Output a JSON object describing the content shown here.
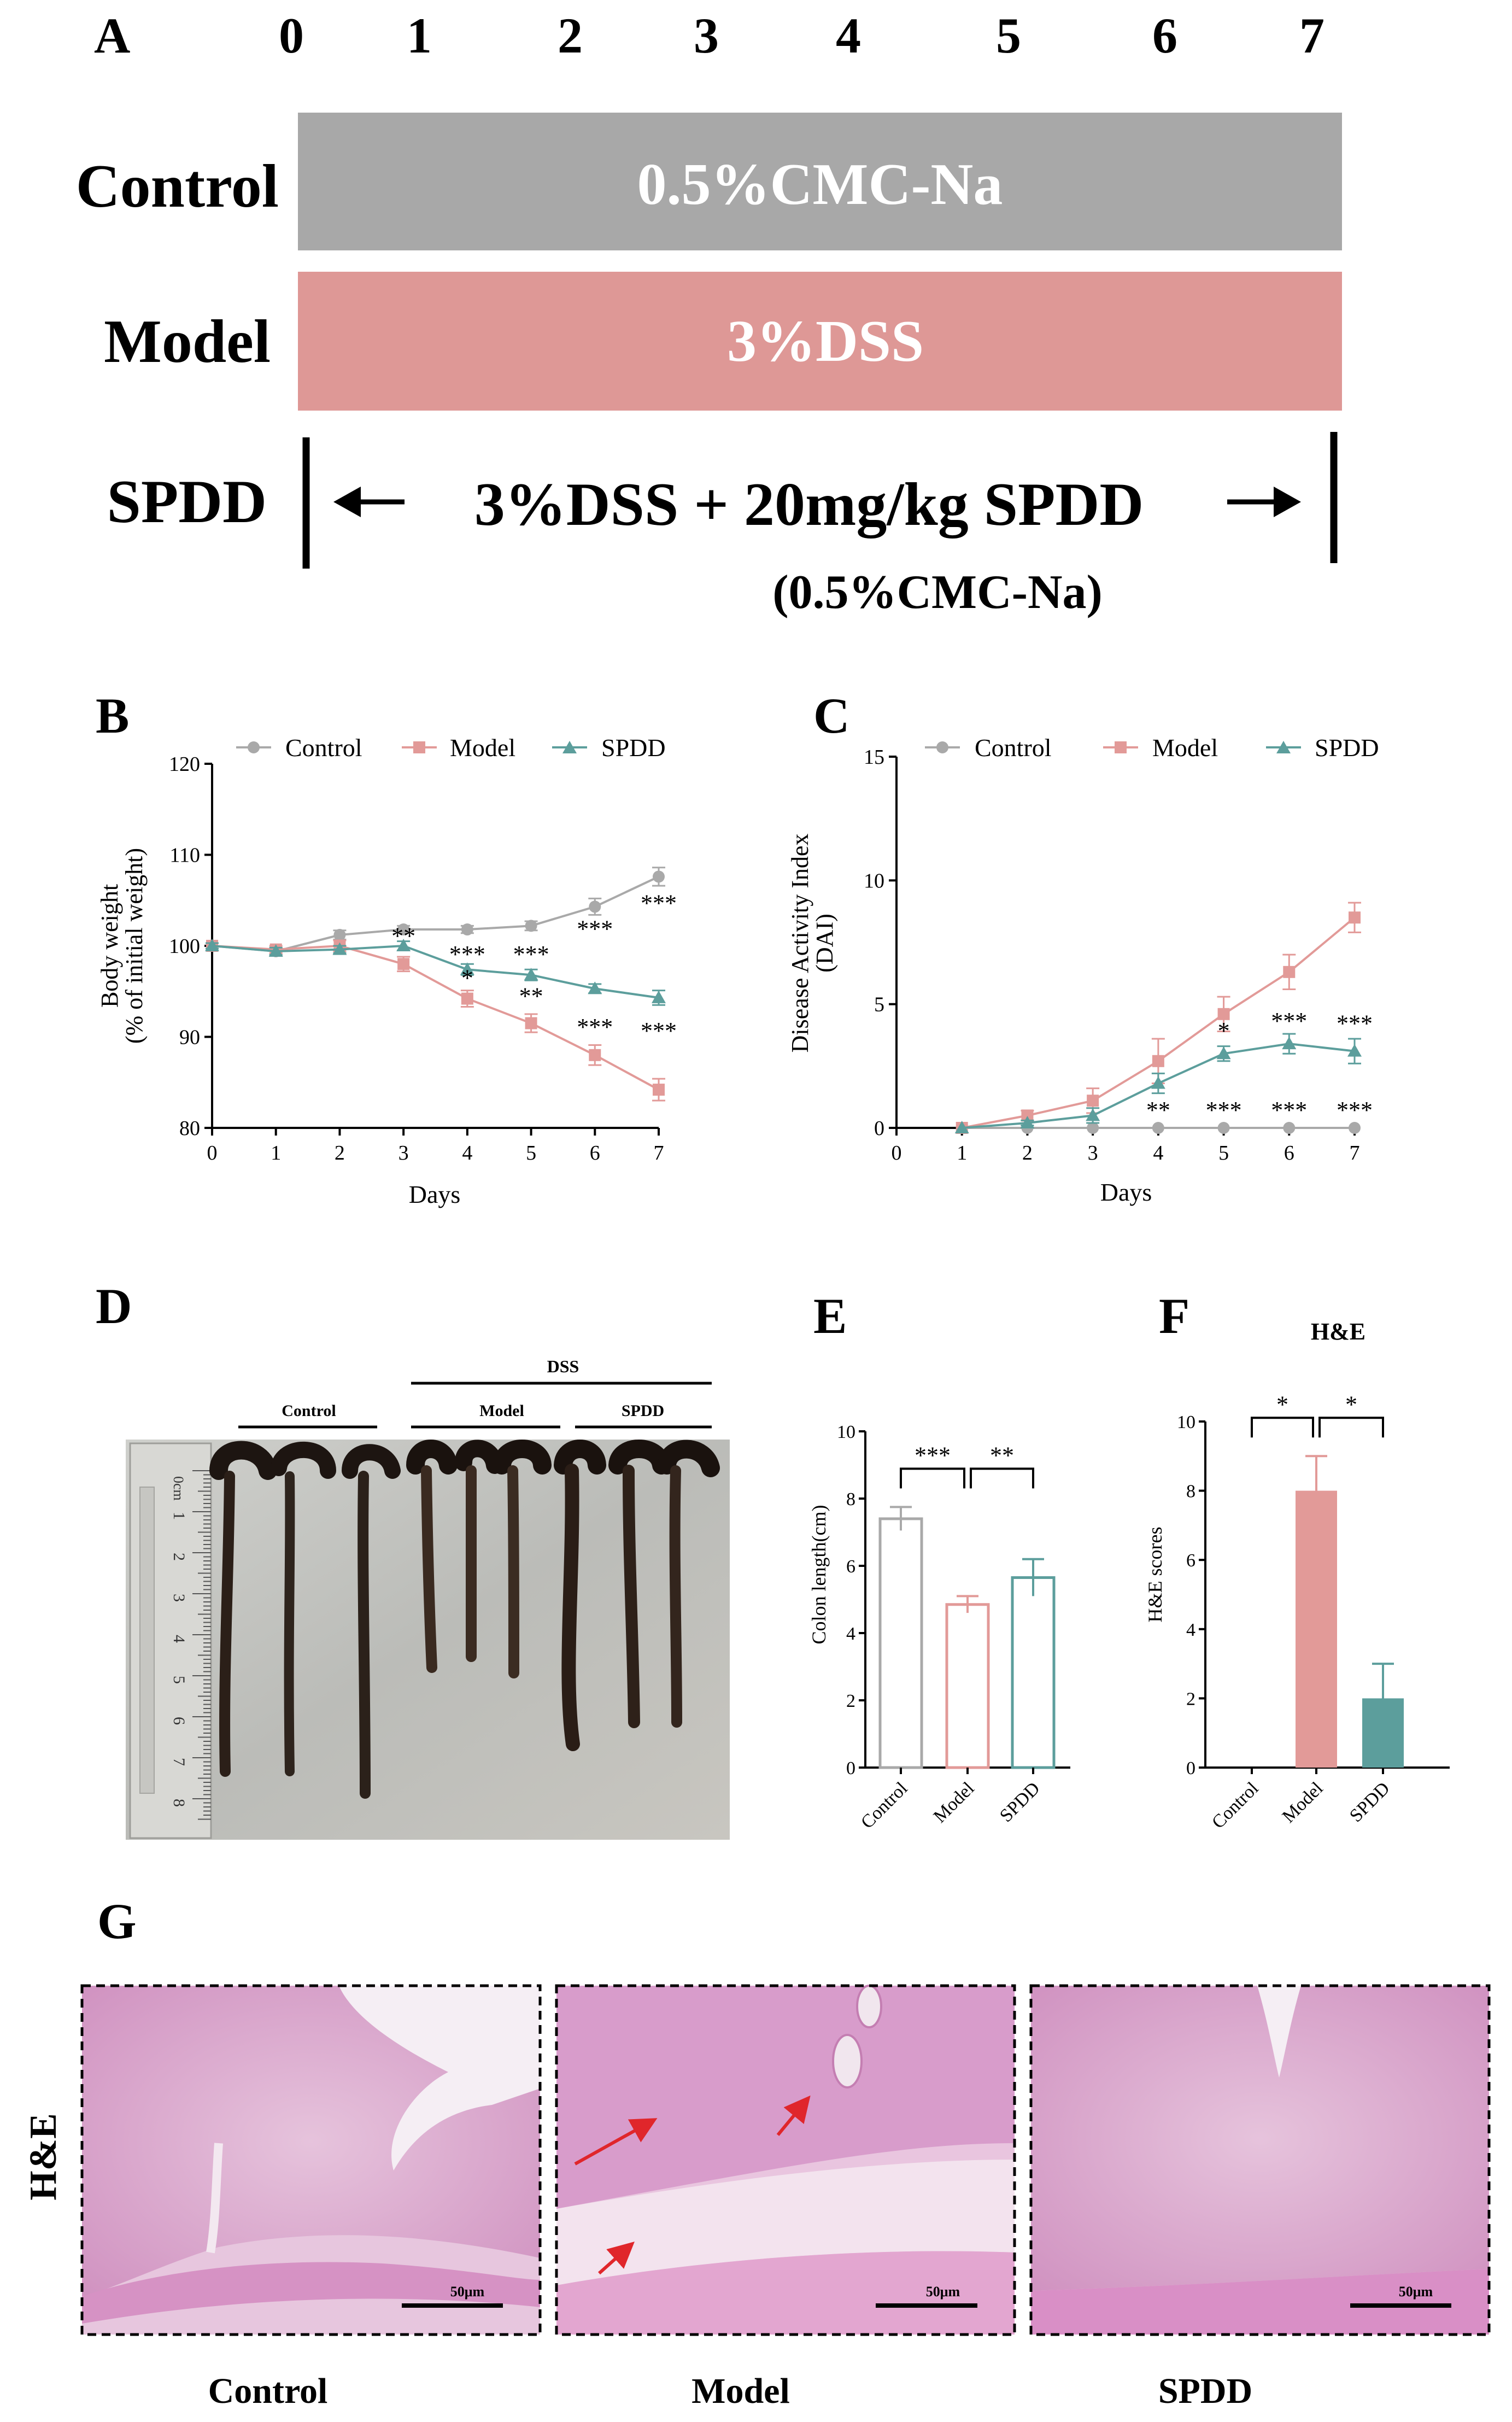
{
  "panel_letters": {
    "A": "A",
    "B": "B",
    "C": "C",
    "D": "D",
    "E": "E",
    "F": "F",
    "G": "G"
  },
  "colors": {
    "control": "#a9a9a9",
    "model": "#e29a98",
    "spdd": "#5c9e9c",
    "control_bar": "#a8a8a8",
    "model_bar": "#de9896",
    "ink": "#000000",
    "arrow_red": "#e0262b"
  },
  "panel_a": {
    "days": [
      "0",
      "1",
      "2",
      "3",
      "4",
      "5",
      "6",
      "7"
    ],
    "rows": [
      {
        "group": "Control",
        "treatment": "0.5%CMC-Na"
      },
      {
        "group": "Model",
        "treatment": "3%DSS"
      },
      {
        "group": "SPDD",
        "treatment": "3%DSS + 20mg/kg SPDD",
        "vehicle": "(0.5%CMC-Na)"
      }
    ]
  },
  "chart_data": [
    {
      "id": "B",
      "type": "line",
      "xlabel": "Days",
      "ylabel_lines": [
        "Body weight",
        "(% of initial weight)"
      ],
      "x": [
        0,
        1,
        2,
        3,
        4,
        5,
        6,
        7
      ],
      "xlim": [
        0,
        7
      ],
      "ylim": [
        80,
        120
      ],
      "x_ticks": [
        0,
        1,
        2,
        3,
        4,
        5,
        6,
        7
      ],
      "y_ticks": [
        80,
        90,
        100,
        110,
        120
      ],
      "legend_position": "top",
      "series": [
        {
          "name": "Control",
          "marker": "circle",
          "values": [
            100,
            99.4,
            101.2,
            101.8,
            101.8,
            102.2,
            104.3,
            107.6
          ],
          "errors": [
            0.3,
            0.4,
            0.5,
            0.4,
            0.4,
            0.5,
            0.9,
            1.0
          ]
        },
        {
          "name": "Model",
          "marker": "square",
          "values": [
            100,
            99.6,
            100,
            98,
            94.2,
            91.5,
            88,
            84.2
          ],
          "errors": [
            0.3,
            0.4,
            0.6,
            0.8,
            0.9,
            1.0,
            1.1,
            1.2
          ]
        },
        {
          "name": "SPDD",
          "marker": "triangle",
          "values": [
            100,
            99.4,
            99.6,
            100,
            97.4,
            96.8,
            95.3,
            94.3
          ],
          "errors": [
            0.3,
            0.4,
            0.4,
            0.5,
            0.6,
            0.6,
            0.5,
            0.8
          ]
        }
      ],
      "annotations": [
        {
          "x": 3,
          "y": 100.2,
          "text": "**"
        },
        {
          "x": 4,
          "y": 98.2,
          "text": "***"
        },
        {
          "x": 4,
          "y": 95.6,
          "text": "*"
        },
        {
          "x": 5,
          "y": 98.2,
          "text": "***"
        },
        {
          "x": 5,
          "y": 93.6,
          "text": "**"
        },
        {
          "x": 6,
          "y": 101,
          "text": "***"
        },
        {
          "x": 6,
          "y": 90.2,
          "text": "***"
        },
        {
          "x": 7,
          "y": 103.8,
          "text": "***"
        },
        {
          "x": 7,
          "y": 89.8,
          "text": "***"
        }
      ]
    },
    {
      "id": "C",
      "type": "line",
      "xlabel": "Days",
      "ylabel_lines": [
        "Disease Activity Index",
        "(DAI)"
      ],
      "x": [
        1,
        2,
        3,
        4,
        5,
        6,
        7
      ],
      "xlim": [
        0,
        7
      ],
      "ylim": [
        0,
        15
      ],
      "x_ticks": [
        0,
        1,
        2,
        3,
        4,
        5,
        6,
        7
      ],
      "y_ticks": [
        0,
        5,
        10,
        15
      ],
      "legend_position": "top",
      "series": [
        {
          "name": "Control",
          "marker": "circle",
          "values": [
            0,
            0,
            0,
            0,
            0,
            0,
            0
          ],
          "errors": [
            0,
            0,
            0,
            0,
            0,
            0,
            0
          ]
        },
        {
          "name": "Model",
          "marker": "square",
          "values": [
            0,
            0.5,
            1.1,
            2.7,
            4.6,
            6.3,
            8.5
          ],
          "errors": [
            0,
            0.2,
            0.5,
            0.9,
            0.7,
            0.7,
            0.6
          ]
        },
        {
          "name": "SPDD",
          "marker": "triangle",
          "values": [
            0,
            0.2,
            0.5,
            1.8,
            3,
            3.4,
            3.1
          ],
          "errors": [
            0,
            0.1,
            0.3,
            0.4,
            0.3,
            0.4,
            0.5
          ]
        }
      ],
      "annotations": [
        {
          "x": 4,
          "y": 0.4,
          "text": "**"
        },
        {
          "x": 5,
          "y": 0.4,
          "text": "***"
        },
        {
          "x": 6,
          "y": 0.4,
          "text": "***"
        },
        {
          "x": 7,
          "y": 0.4,
          "text": "***"
        },
        {
          "x": 5,
          "y": 3.6,
          "text": "*"
        },
        {
          "x": 6,
          "y": 4,
          "text": "***"
        },
        {
          "x": 7,
          "y": 3.9,
          "text": "***"
        }
      ]
    },
    {
      "id": "E",
      "type": "bar",
      "categories": [
        "Control",
        "Model",
        "SPDD"
      ],
      "values": [
        7.4,
        4.85,
        5.65
      ],
      "errors": [
        0.35,
        0.25,
        0.55
      ],
      "ylabel": "Colon length(cm)",
      "ylim": [
        0,
        10
      ],
      "y_ticks": [
        0,
        2,
        4,
        6,
        8,
        10
      ],
      "bar_style": "outline",
      "comparisons": [
        {
          "from": 0,
          "to": 1,
          "text": "***"
        },
        {
          "from": 1,
          "to": 2,
          "text": "**"
        }
      ]
    },
    {
      "id": "F",
      "type": "bar",
      "title": "H&E",
      "categories": [
        "Control",
        "Model",
        "SPDD"
      ],
      "values": [
        0,
        8,
        2
      ],
      "errors": [
        0,
        1,
        1
      ],
      "ylabel": "H&E scores",
      "ylim": [
        0,
        10
      ],
      "y_ticks": [
        0,
        2,
        4,
        6,
        8,
        10
      ],
      "bar_style": "filled",
      "comparisons": [
        {
          "from": 0,
          "to": 1,
          "text": "*"
        },
        {
          "from": 1,
          "to": 2,
          "text": "*"
        }
      ]
    }
  ],
  "panel_d": {
    "group_label": "DSS",
    "labels": [
      "Control",
      "Model",
      "SPDD"
    ],
    "ruler_marks": [
      "0cm",
      "1",
      "2",
      "3",
      "4",
      "5",
      "6",
      "7",
      "8"
    ]
  },
  "panel_g": {
    "row_label": "H&E",
    "scale_bar": "50μm",
    "captions": [
      "Control",
      "Model",
      "SPDD"
    ]
  }
}
